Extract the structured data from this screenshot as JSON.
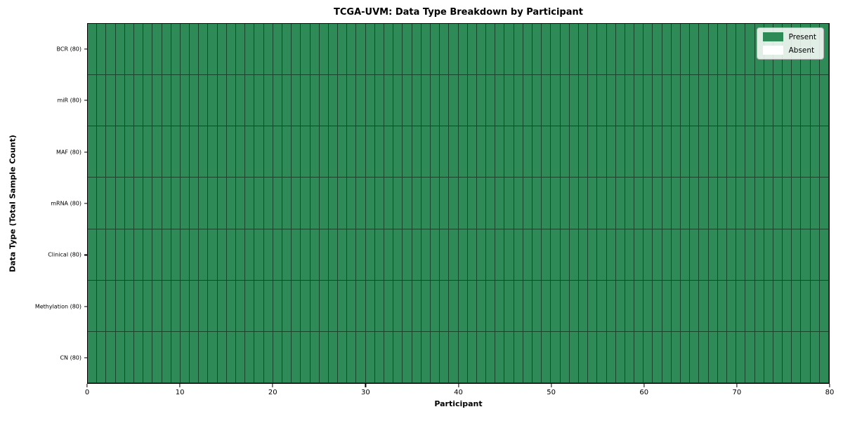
{
  "chart_data": {
    "type": "heatmap",
    "title": "TCGA-UVM: Data Type Breakdown by Participant",
    "xlabel": "Participant",
    "ylabel": "Data Type (Total Sample Count)",
    "participants": 80,
    "xlim": [
      0,
      80
    ],
    "x_ticks": [
      0,
      10,
      20,
      30,
      40,
      50,
      60,
      70,
      80
    ],
    "rows": [
      {
        "name": "BCR",
        "label": "BCR (80)",
        "total": 80,
        "present": 80,
        "absent": 0
      },
      {
        "name": "miR",
        "label": "miR (80)",
        "total": 80,
        "present": 80,
        "absent": 0
      },
      {
        "name": "MAF",
        "label": "MAF (80)",
        "total": 80,
        "present": 80,
        "absent": 0
      },
      {
        "name": "mRNA",
        "label": "mRNA (80)",
        "total": 80,
        "present": 80,
        "absent": 0
      },
      {
        "name": "Clinical",
        "label": "Clinical (80)",
        "total": 80,
        "present": 80,
        "absent": 0
      },
      {
        "name": "Methylation",
        "label": "Methylation (80)",
        "total": 80,
        "present": 80,
        "absent": 0
      },
      {
        "name": "CN",
        "label": "CN (80)",
        "total": 80,
        "present": 80,
        "absent": 0
      }
    ],
    "all_cells_present": true,
    "colors": {
      "present": "#2E8B57",
      "absent": "#FFFFFF",
      "cell_edge": "#000000"
    },
    "legend": {
      "position": "upper right",
      "entries": [
        {
          "label": "Present",
          "color": "#2E8B57"
        },
        {
          "label": "Absent",
          "color": "#FFFFFF"
        }
      ]
    },
    "grid": "cell borders only, no background gridlines"
  }
}
